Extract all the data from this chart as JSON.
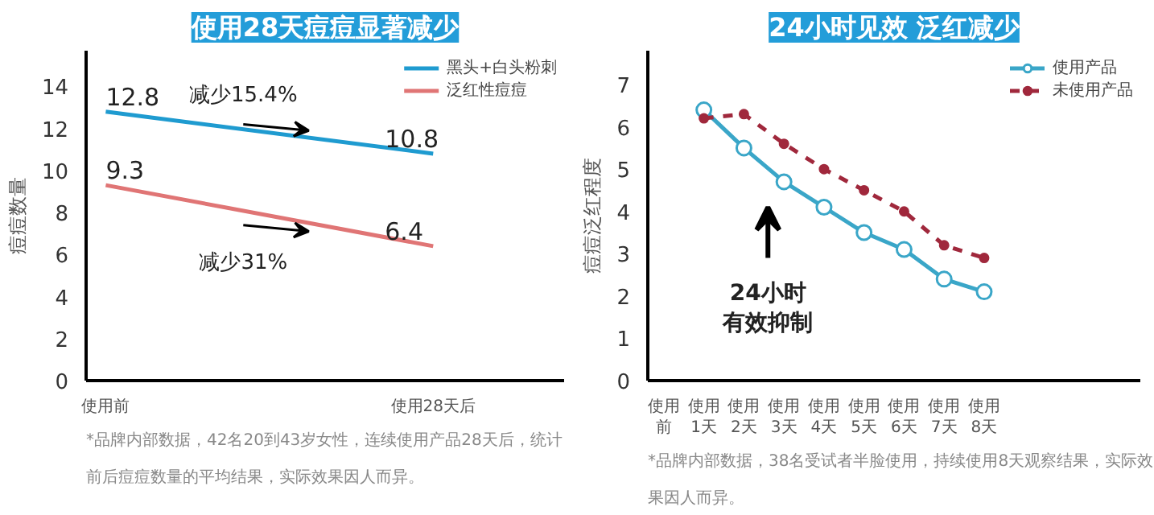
{
  "chart_data": [
    {
      "type": "line",
      "title": "使用28天痘痘显著减少",
      "ylabel": "痘痘数量",
      "categories": [
        "使用前",
        "使用28天后"
      ],
      "series": [
        {
          "name": "黑头+白头粉刺",
          "color": "#1f9bd0",
          "values": [
            12.8,
            10.8
          ]
        },
        {
          "name": "泛红性痘痘",
          "color": "#e07575",
          "values": [
            9.3,
            6.4
          ]
        }
      ],
      "ylim": [
        0,
        15.7
      ],
      "yticks": [
        0,
        2,
        4,
        6,
        8,
        10,
        12,
        14
      ],
      "grid": false,
      "legend": "top right",
      "marker": "none",
      "line_style": "solid",
      "data_labels": true,
      "annotations": [
        "减少15.4%",
        "减少31%",
        "*品牌内部数据，42名20到43岁女性，连续使用产品28天后，统计前后痘痘数量的平均结果，实际效果因人而异。"
      ]
    },
    {
      "type": "line",
      "title": "24小时见效 泛红减少",
      "ylabel": "痘痘泛红程度",
      "categories": [
        "使用前",
        "使用1天",
        "使用2天",
        "使用3天",
        "使用4天",
        "使用5天",
        "使用6天",
        "使用7天",
        "使用8天"
      ],
      "series": [
        {
          "name": "使用产品",
          "color": "#3aa6c8",
          "values": [
            null,
            6.4,
            5.5,
            4.7,
            4.1,
            3.5,
            3.1,
            2.4,
            2.1
          ],
          "marker": "circle",
          "line_style": "solid"
        },
        {
          "name": "未使用产品",
          "color": "#a0283c",
          "values": [
            null,
            6.2,
            6.3,
            5.6,
            5.0,
            4.5,
            4.0,
            3.2,
            2.9
          ],
          "marker": "circle",
          "line_style": "dashed"
        }
      ],
      "ylim": [
        0,
        7.8
      ],
      "yticks": [
        0,
        1,
        2,
        3,
        4,
        5,
        6,
        7
      ],
      "grid": false,
      "legend": "top right",
      "annotations": [
        "24小时",
        "有效抑制",
        "*品牌内部数据，38名受试者半脸使用，持续使用8天观察结果，实际效果因人而异。"
      ]
    }
  ]
}
